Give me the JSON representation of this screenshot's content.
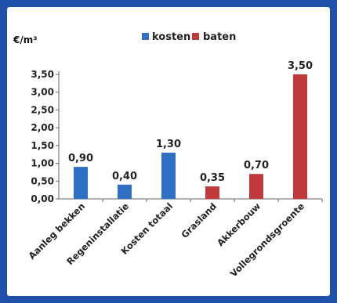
{
  "chart_data": {
    "type": "bar",
    "title": "",
    "unit_label": "€/m³",
    "xlabel": "",
    "ylabel": "",
    "ylim": [
      0,
      3.5
    ],
    "yticks": [
      "0,00",
      "0,50",
      "1,00",
      "1,50",
      "2,00",
      "2,50",
      "3,00",
      "3,50"
    ],
    "categories": [
      "Aanleg bekken",
      "Regeninstallatie",
      "Kosten totaal",
      "Grasland",
      "Akkerbouw",
      "Vollegrondsgroente"
    ],
    "value_labels": [
      "0,90",
      "0,40",
      "1,30",
      "0,35",
      "0,70",
      "3,50"
    ],
    "series": [
      {
        "name": "kosten",
        "color": "#2f6fc4",
        "values": [
          0.9,
          0.4,
          1.3,
          null,
          null,
          null
        ]
      },
      {
        "name": "baten",
        "color": "#c0393b",
        "values": [
          null,
          null,
          null,
          0.35,
          0.7,
          3.5
        ]
      }
    ],
    "legend_position": "top",
    "grid": false
  }
}
